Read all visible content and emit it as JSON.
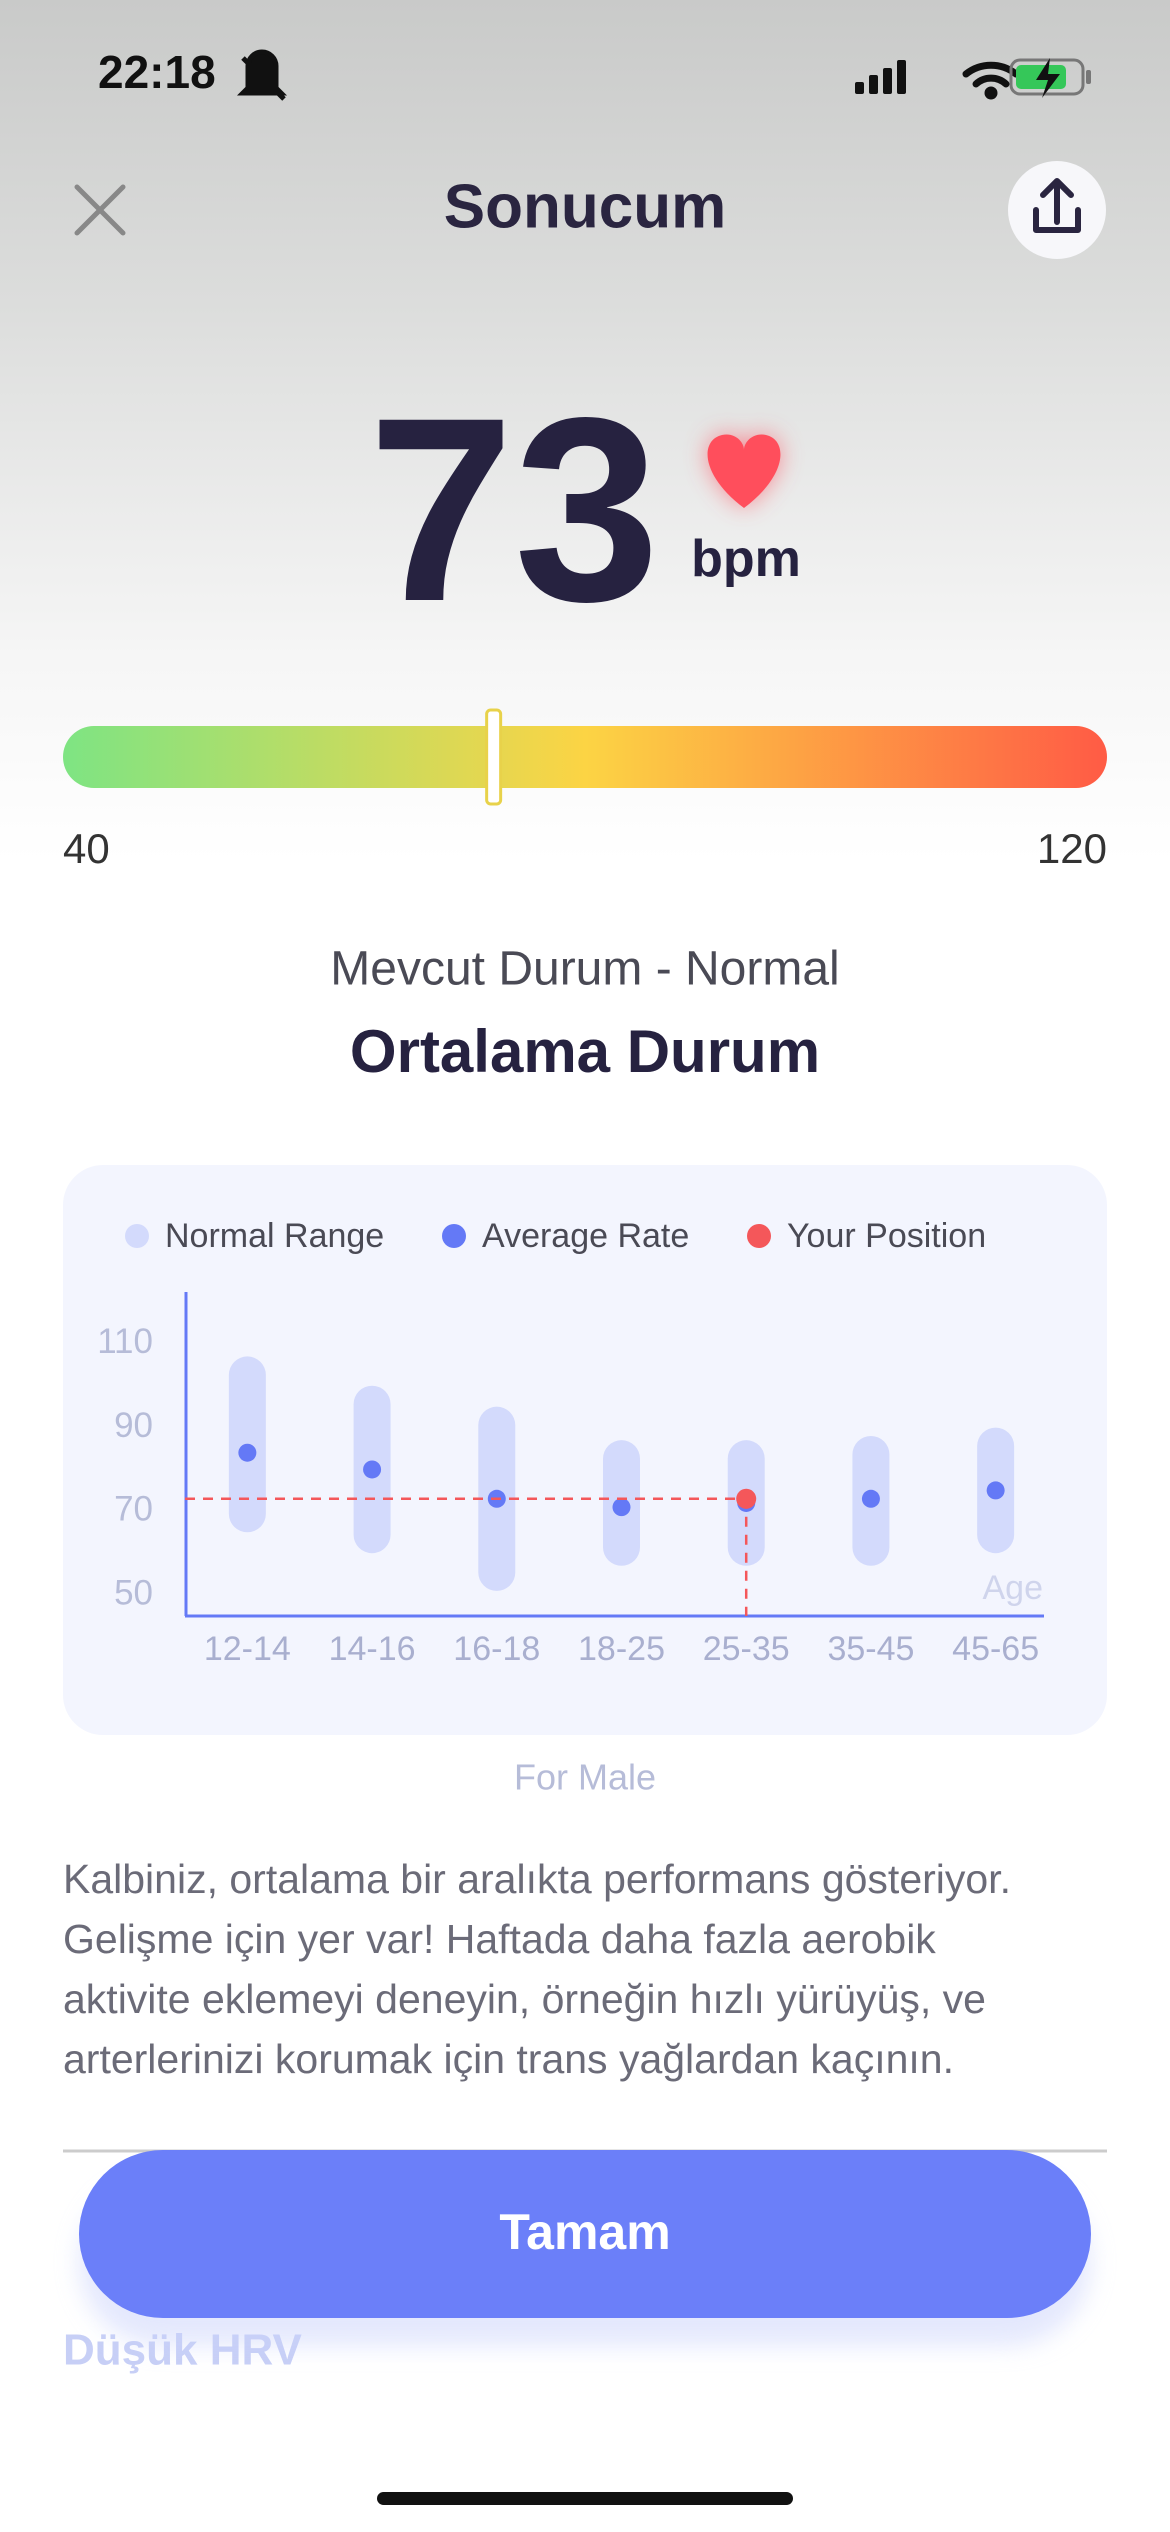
{
  "status_bar": {
    "time": "22:18"
  },
  "header": {
    "title": "Sonucum"
  },
  "result": {
    "value": 73,
    "unit": "bpm",
    "scale_min": 40,
    "scale_max": 120,
    "status": "Mevcut Durum - Normal",
    "label": "Ortalama Durum"
  },
  "chart_data": {
    "type": "range",
    "categories": [
      "12-14",
      "14-16",
      "16-18",
      "18-25",
      "25-35",
      "35-45",
      "45-65"
    ],
    "series": [
      {
        "name": "Normal Range",
        "color": "#d3dafc",
        "low": [
          65,
          60,
          51,
          57,
          57,
          57,
          60
        ],
        "high": [
          107,
          100,
          95,
          87,
          87,
          88,
          90
        ]
      },
      {
        "name": "Average Rate",
        "color": "#6479f6",
        "values": [
          84,
          80,
          73,
          71,
          72,
          73,
          75
        ]
      },
      {
        "name": "Your Position",
        "color": "#f4575a",
        "values": [
          null,
          null,
          null,
          null,
          73,
          null,
          null
        ]
      }
    ],
    "x_label": "Age",
    "ylim": [
      45,
      120
    ],
    "yticks": [
      50,
      70,
      90,
      110
    ],
    "caption": "For Male"
  },
  "description": [
    "Kalbiniz, ortalama bir aralıkta performans gösteriyor.",
    "Gelişme için yer var! Haftada daha fazla aerobik",
    "aktivite eklemeyi deneyin, örneğin hızlı yürüyüş, ve",
    "arterlerinizi korumak için trans yağlardan kaçının."
  ],
  "button": "Tamam",
  "section": {
    "subtitle": "Düşük HRV"
  }
}
